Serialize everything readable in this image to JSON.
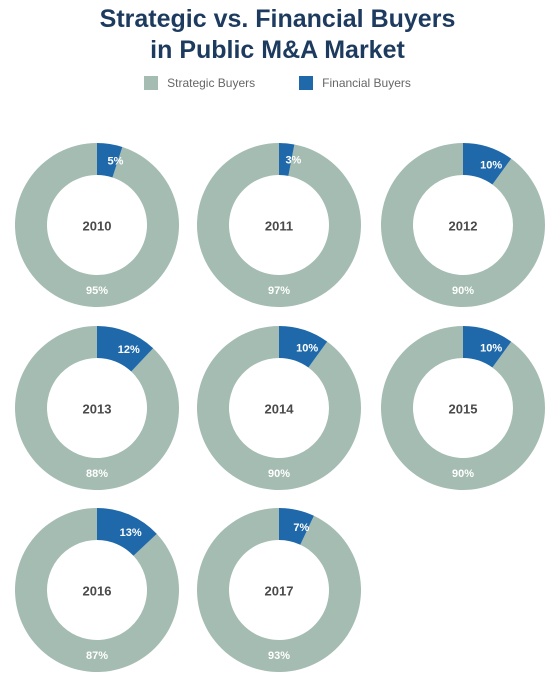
{
  "title_line1": "Strategic vs. Financial Buyers",
  "title_line2": "in Public M&A Market",
  "colors": {
    "strategic": "#a4bcb1",
    "financial": "#1f69ab",
    "title": "#1d3a5f"
  },
  "chart_data": {
    "type": "pie",
    "title": "Strategic vs. Financial Buyers in Public M&A Market",
    "legend": [
      "Strategic Buyers",
      "Financial Buyers"
    ],
    "legend_position": "top-center",
    "donuts": [
      {
        "year": "2010",
        "strategic": 95,
        "financial": 5
      },
      {
        "year": "2011",
        "strategic": 97,
        "financial": 3
      },
      {
        "year": "2012",
        "strategic": 90,
        "financial": 10
      },
      {
        "year": "2013",
        "strategic": 88,
        "financial": 12
      },
      {
        "year": "2014",
        "strategic": 90,
        "financial": 10
      },
      {
        "year": "2015",
        "strategic": 90,
        "financial": 10
      },
      {
        "year": "2016",
        "strategic": 87,
        "financial": 13
      },
      {
        "year": "2017",
        "strategic": 93,
        "financial": 7
      }
    ]
  }
}
